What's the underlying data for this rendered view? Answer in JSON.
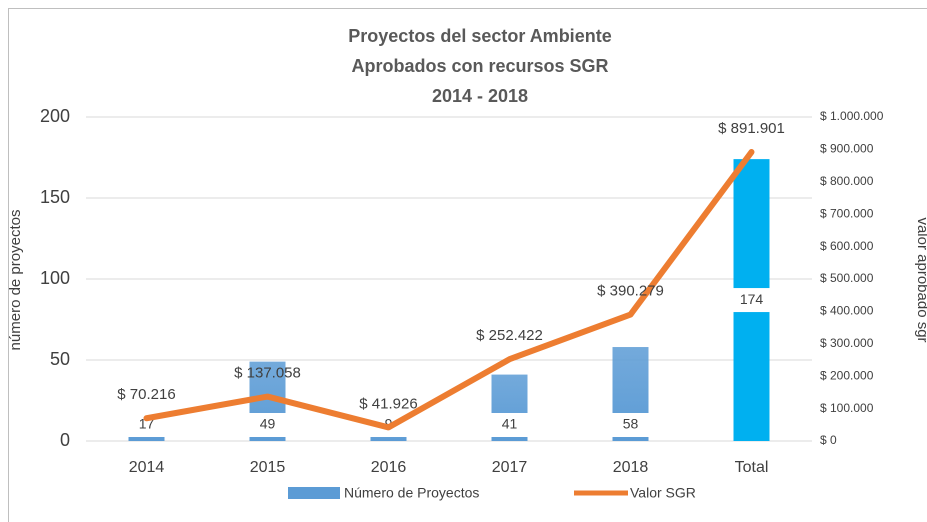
{
  "chart_data": {
    "type": "bar-line",
    "title": [
      "Proyectos del sector Ambiente",
      "Aprobados con recursos SGR",
      "2014 - 2018"
    ],
    "y_label": "número de proyectos",
    "y2_label": "valor aprobado sgr",
    "categories": [
      "2014",
      "2015",
      "2016",
      "2017",
      "2018",
      "Total"
    ],
    "series": [
      {
        "name": "Número de Proyectos",
        "type": "bar",
        "color": "#5b9bd5",
        "colors": [
          "#5b9bd5",
          "#5b9bd5",
          "#5b9bd5",
          "#5b9bd5",
          "#5b9bd5",
          "#00b0f0"
        ],
        "values": [
          17,
          49,
          9,
          41,
          58,
          174
        ]
      },
      {
        "name": "Valor SGR",
        "type": "line",
        "axis": "y2",
        "color": "#ed7d31",
        "values": [
          70216,
          137058,
          41926,
          252422,
          390279,
          891901
        ],
        "value_labels": [
          "$ 70.216",
          "$ 137.058",
          "$ 41.926",
          "$ 252.422",
          "$ 390.279",
          "$ 891.901"
        ]
      }
    ],
    "ylim": [
      0,
      200
    ],
    "yticks": [
      0,
      50,
      100,
      150,
      200
    ],
    "y2lim": [
      0,
      1000000
    ],
    "y2ticks": [
      {
        "value": 0,
        "label": "$ 0"
      },
      {
        "value": 100000,
        "label": "$ 100.000"
      },
      {
        "value": 200000,
        "label": "$ 200.000"
      },
      {
        "value": 300000,
        "label": "$ 300.000"
      },
      {
        "value": 400000,
        "label": "$ 400.000"
      },
      {
        "value": 500000,
        "label": "$ 500.000"
      },
      {
        "value": 600000,
        "label": "$ 600.000"
      },
      {
        "value": 700000,
        "label": "$ 700.000"
      },
      {
        "value": 800000,
        "label": "$ 800.000"
      },
      {
        "value": 900000,
        "label": "$ 900.000"
      },
      {
        "value": 1000000,
        "label": "$ 1.000.000"
      }
    ],
    "grid": true,
    "legend": "bottom"
  }
}
